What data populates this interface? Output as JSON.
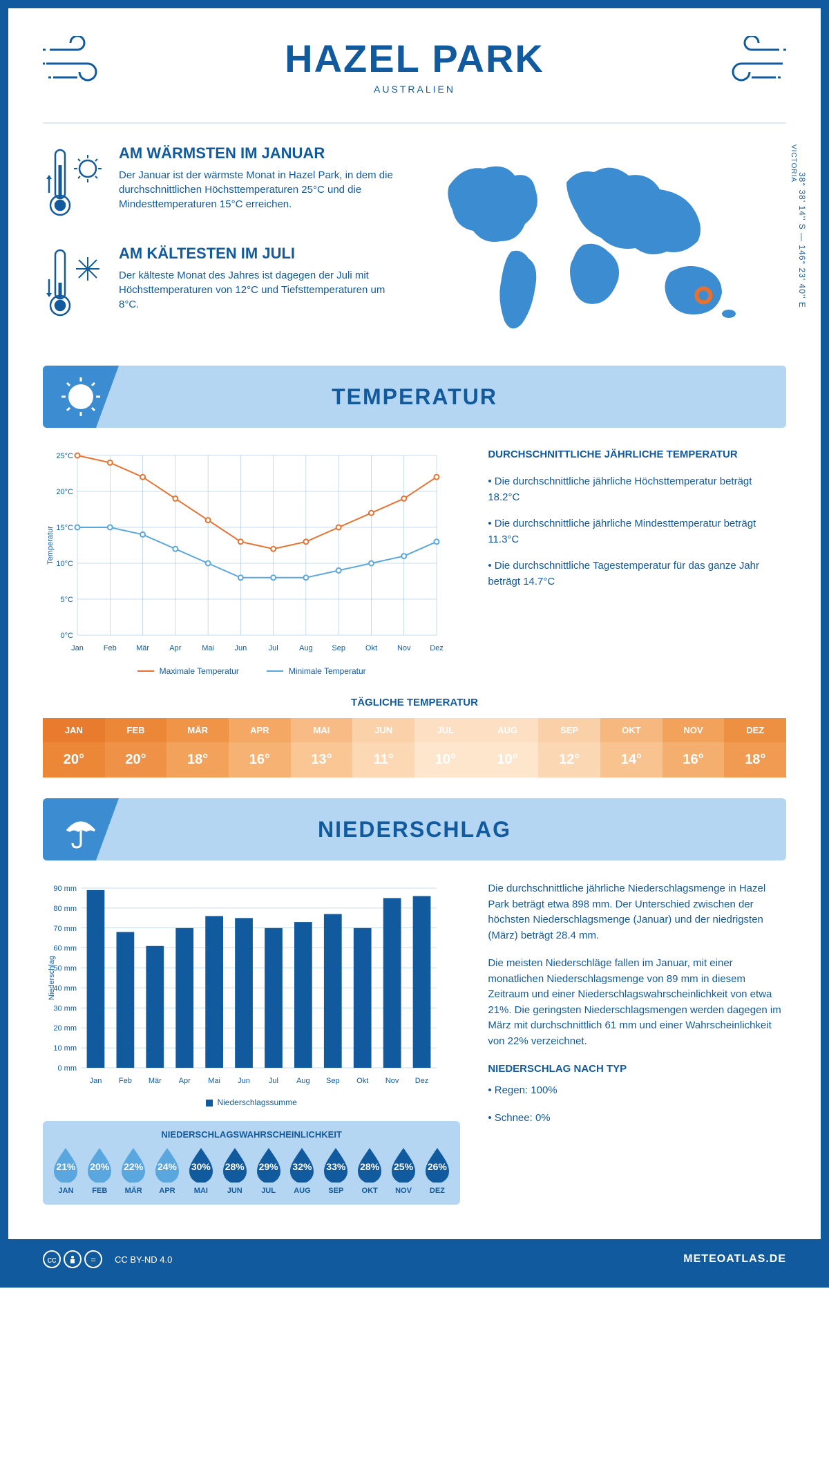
{
  "header": {
    "title": "HAZEL PARK",
    "subtitle": "AUSTRALIEN"
  },
  "coords": "38° 38' 14'' S — 146° 23' 40'' E",
  "region": "VICTORIA",
  "location_marker": {
    "cx_pct": 83,
    "cy_pct": 78
  },
  "warm": {
    "title": "AM WÄRMSTEN IM JANUAR",
    "text": "Der Januar ist der wärmste Monat in Hazel Park, in dem die durchschnittlichen Höchsttemperaturen 25°C und die Mindesttemperaturen 15°C erreichen."
  },
  "cold": {
    "title": "AM KÄLTESTEN IM JULI",
    "text": "Der kälteste Monat des Jahres ist dagegen der Juli mit Höchsttemperaturen von 12°C und Tiefsttemperaturen um 8°C."
  },
  "temp_section_title": "TEMPERATUR",
  "precip_section_title": "NIEDERSCHLAG",
  "months": [
    "Jan",
    "Feb",
    "Mär",
    "Apr",
    "Mai",
    "Jun",
    "Jul",
    "Aug",
    "Sep",
    "Okt",
    "Nov",
    "Dez"
  ],
  "months_upper": [
    "JAN",
    "FEB",
    "MÄR",
    "APR",
    "MAI",
    "JUN",
    "JUL",
    "AUG",
    "SEP",
    "OKT",
    "NOV",
    "DEZ"
  ],
  "temp_chart": {
    "type": "line",
    "ylabel": "Temperatur",
    "ylim": [
      0,
      25
    ],
    "ytick_step": 5,
    "max_series": {
      "label": "Maximale Temperatur",
      "color": "#e8712f",
      "values": [
        25,
        24,
        22,
        19,
        16,
        13,
        12,
        13,
        15,
        17,
        19,
        22
      ]
    },
    "min_series": {
      "label": "Minimale Temperatur",
      "color": "#5aa7e0",
      "values": [
        15,
        15,
        14,
        12,
        10,
        8,
        8,
        8,
        9,
        10,
        11,
        13
      ]
    },
    "grid_color": "#8fb8da",
    "background": "#ffffff"
  },
  "temp_text": {
    "heading": "DURCHSCHNITTLICHE JÄHRLICHE TEMPERATUR",
    "b1": "• Die durchschnittliche jährliche Höchsttemperatur beträgt 18.2°C",
    "b2": "• Die durchschnittliche jährliche Mindesttemperatur beträgt 11.3°C",
    "b3": "• Die durchschnittliche Tagestemperatur für das ganze Jahr beträgt 14.7°C"
  },
  "daily_title": "TÄGLICHE TEMPERATUR",
  "daily_temp": {
    "values": [
      "20°",
      "20°",
      "18°",
      "16°",
      "13°",
      "11°",
      "10°",
      "10°",
      "12°",
      "14°",
      "16°",
      "18°"
    ],
    "header_colors": [
      "#e97b2e",
      "#ec8738",
      "#f09547",
      "#f4a863",
      "#f8bb85",
      "#fbd1aa",
      "#fde0c4",
      "#fde0c4",
      "#fad0a8",
      "#f6b87f",
      "#f2a25b",
      "#ee9042"
    ],
    "value_colors": [
      "#ec8738",
      "#ef9247",
      "#f2a25b",
      "#f6b273",
      "#f9c694",
      "#fcd8b5",
      "#fee6cd",
      "#fee6cd",
      "#fcd7b3",
      "#f8c38f",
      "#f4af6e",
      "#f09b51"
    ]
  },
  "precip_chart": {
    "type": "bar",
    "ylabel": "Niederschlag",
    "ylim": [
      0,
      90
    ],
    "ytick_step": 10,
    "values": [
      89,
      68,
      61,
      70,
      76,
      75,
      70,
      73,
      77,
      70,
      85,
      86
    ],
    "bar_color": "#115a9e",
    "grid_color": "#8fb8da",
    "legend": "Niederschlagssumme"
  },
  "precip_text": {
    "p1": "Die durchschnittliche jährliche Niederschlagsmenge in Hazel Park beträgt etwa 898 mm. Der Unterschied zwischen der höchsten Niederschlagsmenge (Januar) und der niedrigsten (März) beträgt 28.4 mm.",
    "p2": "Die meisten Niederschläge fallen im Januar, mit einer monatlichen Niederschlagsmenge von 89 mm in diesem Zeitraum und einer Niederschlagswahrscheinlichkeit von etwa 21%. Die geringsten Niederschlagsmengen werden dagegen im März mit durchschnittlich 61 mm und einer Wahrscheinlichkeit von 22% verzeichnet.",
    "type_heading": "NIEDERSCHLAG NACH TYP",
    "type1": "• Regen: 100%",
    "type2": "• Schnee: 0%"
  },
  "prob": {
    "title": "NIEDERSCHLAGSWAHRSCHEINLICHKEIT",
    "values": [
      21,
      20,
      22,
      24,
      30,
      28,
      29,
      32,
      33,
      28,
      25,
      26
    ],
    "light_color": "#5aa7e0",
    "dark_color": "#115a9e",
    "threshold": 25
  },
  "footer": {
    "license": "CC BY-ND 4.0",
    "site": "METEOATLAS.DE"
  },
  "colors": {
    "primary": "#115a9e",
    "light": "#b4d6f2",
    "mid": "#3b8cd1"
  }
}
